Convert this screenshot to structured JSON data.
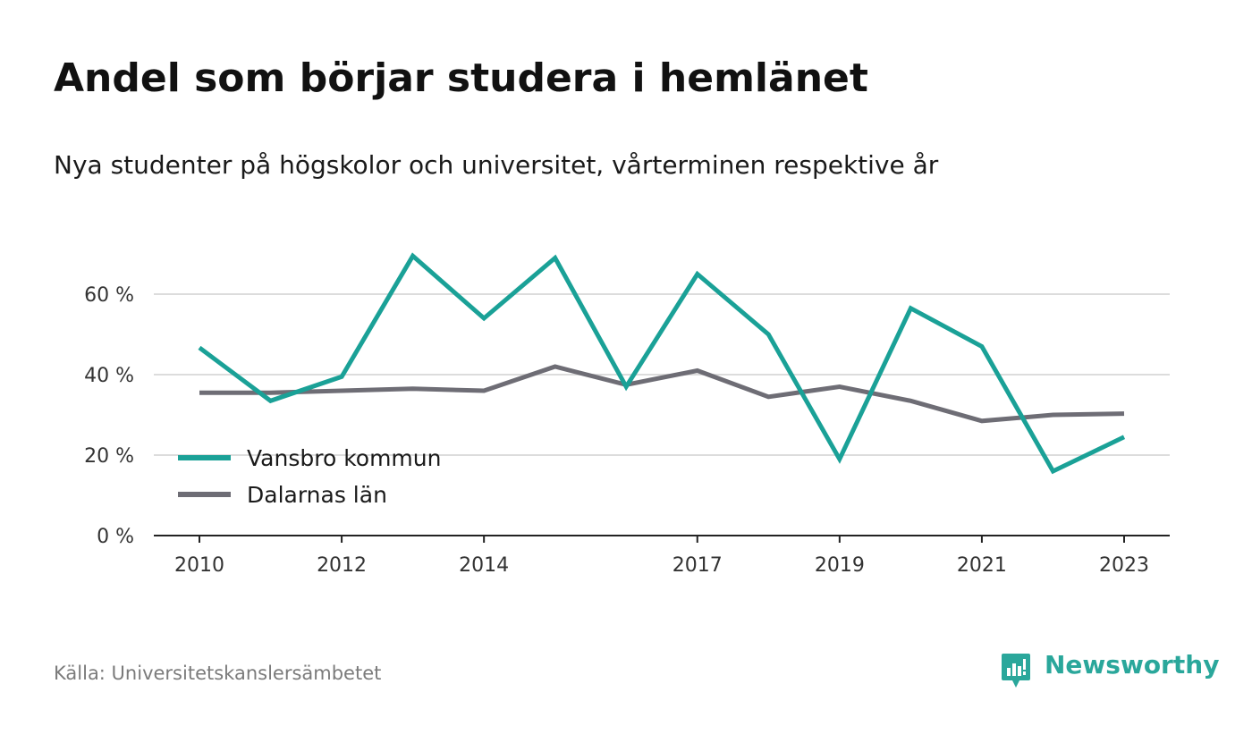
{
  "header": {
    "title": "Andel som börjar studera i hemlänet",
    "subtitle": "Nya studenter på högskolor och universitet, vårterminen respektive år"
  },
  "footer": {
    "source": "Källa: Universitetskanslersämbetet",
    "brand": "Newsworthy",
    "brand_icon": "newsworthy-logo-icon"
  },
  "chart_data": {
    "type": "line",
    "title": "Andel som börjar studera i hemlänet",
    "subtitle": "Nya studenter på högskolor och universitet, vårterminen respektive år",
    "x": [
      2010,
      2011,
      2012,
      2013,
      2014,
      2015,
      2016,
      2017,
      2018,
      2019,
      2020,
      2021,
      2022,
      2023
    ],
    "x_tick_labels": [
      "2010",
      "2012",
      "2014",
      "2017",
      "2019",
      "2021",
      "2023"
    ],
    "x_ticks": [
      2010,
      2012,
      2014,
      2017,
      2019,
      2021,
      2023
    ],
    "y_ticks": [
      0,
      20,
      40,
      60
    ],
    "y_tick_labels": [
      "0 %",
      "20 %",
      "40 %",
      "60 %"
    ],
    "ylim": [
      0,
      70
    ],
    "grid": true,
    "legend_position": "bottom-left",
    "series": [
      {
        "name": "Vansbro kommun",
        "color": "#1aa197",
        "values": [
          46.7,
          33.5,
          39.5,
          69.5,
          54.0,
          69.0,
          37.0,
          65.0,
          50.0,
          19.0,
          56.5,
          47.0,
          16.0,
          24.5
        ]
      },
      {
        "name": "Dalarnas län",
        "color": "#6e6d75",
        "values": [
          35.5,
          35.5,
          36.0,
          36.5,
          36.0,
          42.0,
          37.5,
          41.0,
          34.5,
          37.0,
          33.5,
          28.5,
          30.0,
          30.3
        ]
      }
    ]
  }
}
